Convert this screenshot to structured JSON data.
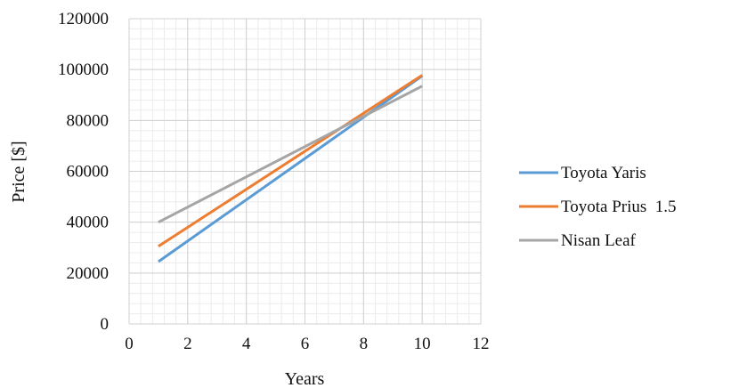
{
  "chart_data": {
    "type": "line",
    "title": "",
    "xlabel": "Years",
    "ylabel": "Price [$]",
    "xlim": [
      0,
      12
    ],
    "ylim": [
      0,
      120000
    ],
    "x_ticks": [
      0,
      2,
      4,
      6,
      8,
      10,
      12
    ],
    "y_ticks": [
      0,
      20000,
      40000,
      60000,
      80000,
      100000,
      120000
    ],
    "grid": true,
    "legend_position": "right",
    "series": [
      {
        "name": "Toyota Yaris",
        "color": "#5b9bd5",
        "x": [
          1,
          10
        ],
        "values": [
          24500,
          97500
        ]
      },
      {
        "name": "Toyota Prius  1.5",
        "color": "#ed7d31",
        "x": [
          1,
          10
        ],
        "values": [
          30500,
          97800
        ]
      },
      {
        "name": "Nisan Leaf",
        "color": "#a5a5a5",
        "x": [
          1,
          10
        ],
        "values": [
          40000,
          93500
        ]
      }
    ]
  }
}
